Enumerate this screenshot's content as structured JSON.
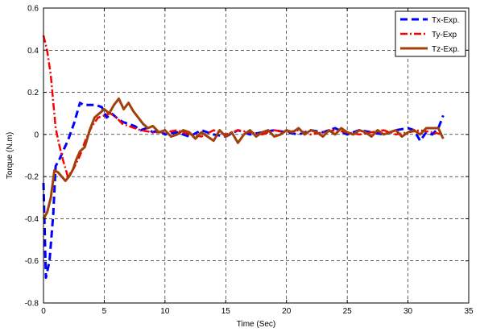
{
  "chart_data": {
    "type": "line",
    "title": "",
    "xlabel": "Time (Sec)",
    "ylabel": "Torque (N.m)",
    "xlim": [
      0,
      35
    ],
    "ylim": [
      -0.8,
      0.6
    ],
    "xticks": [
      0,
      5,
      10,
      15,
      20,
      25,
      30,
      35
    ],
    "yticks": [
      -0.8,
      -0.6,
      -0.4,
      -0.2,
      0,
      0.2,
      0.4,
      0.6
    ],
    "xtick_labels": [
      "0",
      "5",
      "10",
      "15",
      "20",
      "25",
      "30",
      "35"
    ],
    "ytick_labels": [
      "-0.8",
      "-0.6",
      "-0.4",
      "-0.2",
      "0",
      "0.2",
      "0.4",
      "0.6"
    ],
    "grid": true,
    "legend_position": "top-right",
    "series": [
      {
        "name": "Tx-Exp.",
        "color": "#0000ff",
        "dash": "dashed",
        "x": [
          0,
          0.2,
          0.5,
          0.8,
          1.0,
          1.3,
          1.6,
          2.0,
          2.5,
          3.0,
          3.3,
          3.8,
          4.3,
          4.8,
          5.2,
          5.6,
          6.0,
          6.5,
          7.0,
          7.5,
          8.0,
          8.5,
          9.0,
          9.5,
          10.0,
          11.0,
          12.0,
          13.0,
          14.0,
          15.0,
          16.0,
          17.0,
          18.0,
          19.0,
          20.0,
          21.0,
          22.0,
          23.0,
          24.0,
          25.0,
          26.0,
          27.0,
          28.0,
          29.0,
          30.0,
          30.5,
          31.0,
          31.5,
          32.0,
          32.5,
          32.9
        ],
        "values": [
          -0.23,
          -0.68,
          -0.6,
          -0.38,
          -0.15,
          -0.12,
          -0.08,
          -0.03,
          0.05,
          0.15,
          0.14,
          0.14,
          0.14,
          0.13,
          0.08,
          0.1,
          0.08,
          0.06,
          0.05,
          0.04,
          0.02,
          0.03,
          0.01,
          0.02,
          0.0,
          0.01,
          -0.01,
          0.02,
          0.0,
          -0.01,
          0.02,
          0.0,
          0.01,
          0.02,
          0.01,
          0.0,
          0.02,
          0.01,
          0.03,
          0.0,
          0.02,
          0.01,
          0.0,
          0.02,
          0.03,
          0.02,
          -0.03,
          0.01,
          0.0,
          0.03,
          0.09
        ]
      },
      {
        "name": "Ty-Exp",
        "color": "#ff0000",
        "dash": "dashdot",
        "x": [
          0,
          0.3,
          0.6,
          1.0,
          1.3,
          1.6,
          2.0,
          2.5,
          3.0,
          3.5,
          4.0,
          4.5,
          5.0,
          5.5,
          6.0,
          6.5,
          7.0,
          8.0,
          9.0,
          10.0,
          11.0,
          12.0,
          13.0,
          14.0,
          15.0,
          16.0,
          17.0,
          18.0,
          19.0,
          20.0,
          21.0,
          22.0,
          23.0,
          24.0,
          25.0,
          26.0,
          27.0,
          28.0,
          29.0,
          30.0,
          31.0,
          32.0,
          32.9
        ],
        "values": [
          0.47,
          0.4,
          0.28,
          0.03,
          -0.05,
          -0.12,
          -0.2,
          -0.16,
          -0.1,
          -0.02,
          0.04,
          0.08,
          0.09,
          0.1,
          0.08,
          0.05,
          0.04,
          0.02,
          0.01,
          0.01,
          0.02,
          0.0,
          -0.01,
          0.02,
          0.0,
          0.02,
          0.01,
          0.0,
          0.02,
          0.01,
          0.02,
          0.0,
          0.01,
          0.02,
          0.01,
          0.0,
          0.01,
          0.02,
          0.0,
          0.01,
          0.02,
          0.01,
          0.0
        ]
      },
      {
        "name": "Tz-Exp.",
        "color": "#a0400a",
        "dash": "solid",
        "x": [
          0,
          0.3,
          0.6,
          0.9,
          1.2,
          1.5,
          1.8,
          2.1,
          2.4,
          2.7,
          3.0,
          3.4,
          3.8,
          4.2,
          4.6,
          5.0,
          5.4,
          5.8,
          6.2,
          6.6,
          7.0,
          7.4,
          7.8,
          8.2,
          8.6,
          9.0,
          9.5,
          10.0,
          10.5,
          11.0,
          11.5,
          12.0,
          12.5,
          13.0,
          13.5,
          14.0,
          14.5,
          15.0,
          15.5,
          16.0,
          16.5,
          17.0,
          17.5,
          18.0,
          18.5,
          19.0,
          19.5,
          20.0,
          20.5,
          21.0,
          21.5,
          22.0,
          22.5,
          23.0,
          23.5,
          24.0,
          24.5,
          25.0,
          25.5,
          26.0,
          26.5,
          27.0,
          27.5,
          28.0,
          28.5,
          29.0,
          29.5,
          30.0,
          30.5,
          31.0,
          31.5,
          32.0,
          32.5,
          32.9
        ],
        "values": [
          -0.4,
          -0.37,
          -0.3,
          -0.17,
          -0.18,
          -0.2,
          -0.22,
          -0.2,
          -0.17,
          -0.12,
          -0.08,
          -0.06,
          0.02,
          0.08,
          0.1,
          0.12,
          0.1,
          0.14,
          0.17,
          0.12,
          0.15,
          0.11,
          0.08,
          0.05,
          0.03,
          0.04,
          0.01,
          0.02,
          -0.01,
          0.0,
          0.02,
          0.01,
          -0.02,
          0.01,
          -0.01,
          -0.03,
          0.02,
          -0.01,
          0.01,
          -0.04,
          0.0,
          0.02,
          -0.01,
          0.01,
          0.02,
          -0.01,
          0.0,
          0.02,
          0.01,
          0.03,
          0.0,
          0.02,
          0.01,
          -0.01,
          0.02,
          0.0,
          0.03,
          0.01,
          0.0,
          0.02,
          0.01,
          -0.01,
          0.02,
          0.0,
          0.01,
          0.02,
          -0.01,
          0.01,
          0.02,
          0.0,
          0.03,
          0.03,
          0.03,
          -0.02
        ]
      }
    ]
  }
}
